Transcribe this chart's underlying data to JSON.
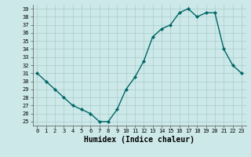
{
  "x": [
    0,
    1,
    2,
    3,
    4,
    5,
    6,
    7,
    8,
    9,
    10,
    11,
    12,
    13,
    14,
    15,
    16,
    17,
    18,
    19,
    20,
    21,
    22,
    23
  ],
  "y": [
    31,
    30,
    29,
    28,
    27,
    26.5,
    26,
    25,
    25,
    26.5,
    29,
    30.5,
    32.5,
    35.5,
    36.5,
    37,
    38.5,
    39,
    38,
    38.5,
    38.5,
    34,
    32,
    31
  ],
  "xlabel": "Humidex (Indice chaleur)",
  "bg_color": "#cce8e8",
  "grid_color": "#aacccc",
  "line_color": "#006666",
  "marker_color": "#006666",
  "ylim": [
    24.5,
    39.5
  ],
  "xlim": [
    -0.5,
    23.5
  ],
  "yticks": [
    25,
    26,
    27,
    28,
    29,
    30,
    31,
    32,
    33,
    34,
    35,
    36,
    37,
    38,
    39
  ],
  "xticks": [
    0,
    1,
    2,
    3,
    4,
    5,
    6,
    7,
    8,
    9,
    10,
    11,
    12,
    13,
    14,
    15,
    16,
    17,
    18,
    19,
    20,
    21,
    22,
    23
  ],
  "xlabel_fontsize": 7,
  "tick_fontsize": 5,
  "line_width": 1.0,
  "marker_size": 2.2
}
